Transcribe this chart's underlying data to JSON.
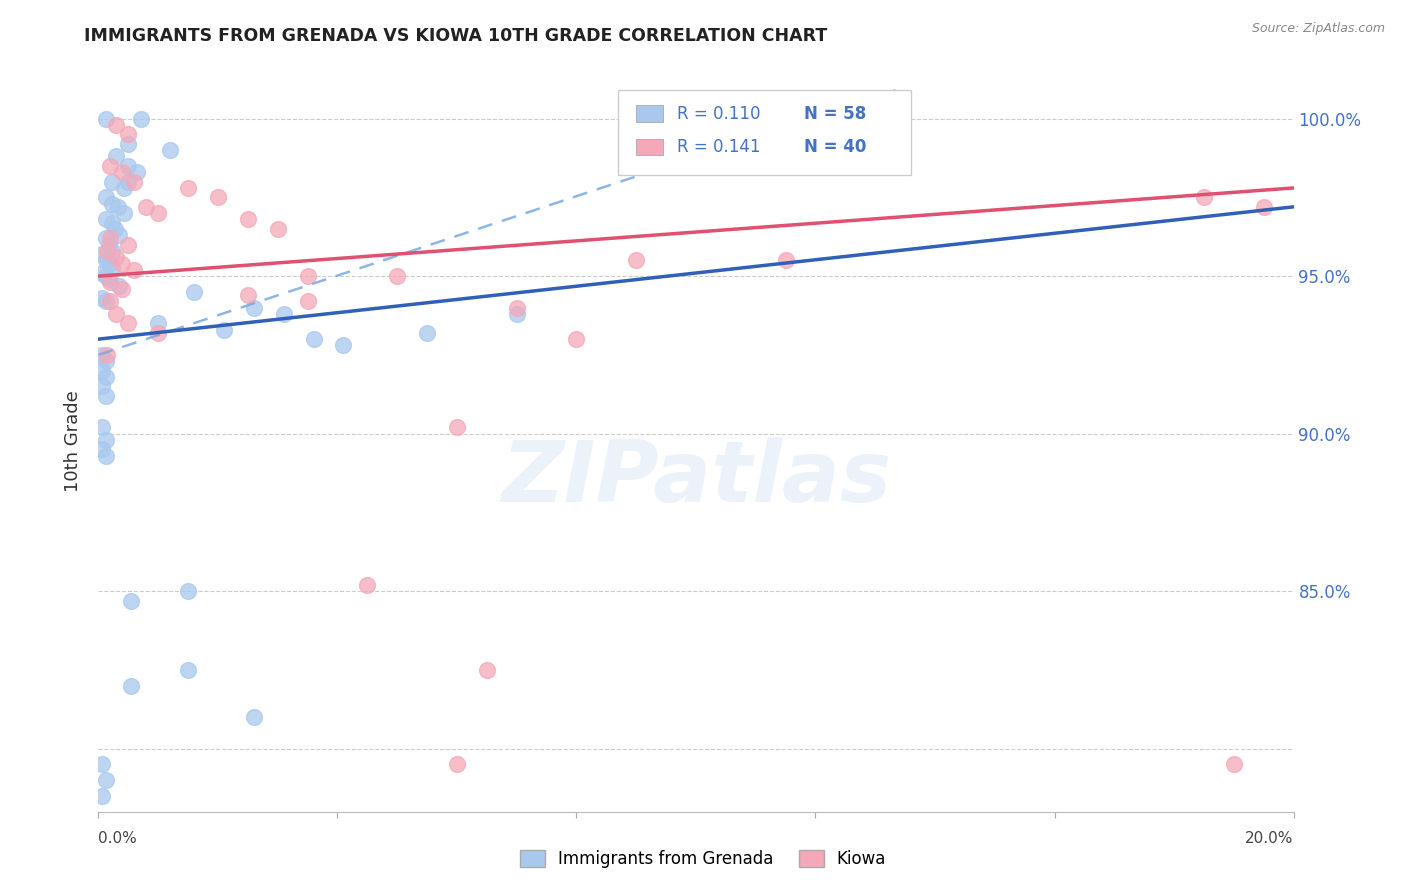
{
  "title": "IMMIGRANTS FROM GRENADA VS KIOWA 10TH GRADE CORRELATION CHART",
  "source": "Source: ZipAtlas.com",
  "ylabel": "10th Grade",
  "x_min": 0.0,
  "x_max": 20.0,
  "y_min": 78.0,
  "y_max": 101.5,
  "blue_color": "#A8C8EE",
  "pink_color": "#F4A8B8",
  "blue_line_color": "#3060B8",
  "pink_line_color": "#E05070",
  "dashed_line_color": "#7AAADE",
  "legend_r_color": "#4472C4",
  "blue_label": "Immigrants from Grenada",
  "pink_label": "Kiowa",
  "blue_r": "0.110",
  "blue_n": "58",
  "pink_r": "0.141",
  "pink_n": "40",
  "blue_line": [
    [
      0.0,
      93.0
    ],
    [
      20.0,
      97.2
    ]
  ],
  "pink_line": [
    [
      0.0,
      95.0
    ],
    [
      20.0,
      97.8
    ]
  ],
  "dashed_line": [
    [
      0.0,
      92.5
    ],
    [
      13.5,
      101.0
    ]
  ],
  "y_ticks": [
    80,
    85,
    90,
    95,
    100
  ],
  "y_tick_labels_right": [
    "",
    "85.0%",
    "90.0%",
    "95.0%",
    "100.0%"
  ],
  "grid_color": "#CCCCCC",
  "tick_label_color": "#4472C4",
  "blue_points": [
    [
      0.12,
      100.0
    ],
    [
      0.72,
      100.0
    ],
    [
      0.5,
      99.2
    ],
    [
      0.3,
      98.8
    ],
    [
      0.5,
      98.5
    ],
    [
      0.65,
      98.3
    ],
    [
      0.22,
      98.0
    ],
    [
      0.42,
      97.8
    ],
    [
      0.12,
      97.5
    ],
    [
      0.22,
      97.3
    ],
    [
      0.32,
      97.2
    ],
    [
      0.42,
      97.0
    ],
    [
      0.12,
      96.8
    ],
    [
      0.22,
      96.7
    ],
    [
      0.28,
      96.5
    ],
    [
      0.35,
      96.3
    ],
    [
      0.12,
      96.2
    ],
    [
      0.18,
      96.0
    ],
    [
      0.22,
      95.8
    ],
    [
      0.06,
      95.7
    ],
    [
      0.12,
      95.5
    ],
    [
      0.18,
      95.4
    ],
    [
      0.22,
      95.3
    ],
    [
      0.06,
      95.1
    ],
    [
      0.12,
      95.0
    ],
    [
      0.18,
      94.9
    ],
    [
      0.35,
      94.7
    ],
    [
      1.6,
      94.5
    ],
    [
      0.06,
      94.3
    ],
    [
      0.12,
      94.2
    ],
    [
      2.6,
      94.0
    ],
    [
      3.1,
      93.8
    ],
    [
      1.0,
      93.5
    ],
    [
      2.1,
      93.3
    ],
    [
      3.6,
      93.0
    ],
    [
      4.1,
      92.8
    ],
    [
      0.06,
      92.5
    ],
    [
      0.12,
      92.3
    ],
    [
      0.06,
      92.0
    ],
    [
      0.12,
      91.8
    ],
    [
      0.06,
      91.5
    ],
    [
      0.12,
      91.2
    ],
    [
      5.5,
      93.2
    ],
    [
      7.0,
      93.8
    ],
    [
      0.06,
      90.2
    ],
    [
      0.12,
      89.8
    ],
    [
      0.06,
      89.5
    ],
    [
      0.12,
      89.3
    ],
    [
      1.5,
      85.0
    ],
    [
      0.55,
      84.7
    ],
    [
      1.5,
      82.5
    ],
    [
      0.55,
      82.0
    ],
    [
      2.6,
      81.0
    ],
    [
      0.06,
      79.5
    ],
    [
      0.12,
      79.0
    ],
    [
      0.06,
      78.5
    ],
    [
      1.2,
      99.0
    ],
    [
      0.5,
      98.0
    ]
  ],
  "pink_points": [
    [
      0.3,
      99.8
    ],
    [
      0.5,
      99.5
    ],
    [
      0.2,
      98.5
    ],
    [
      0.4,
      98.3
    ],
    [
      0.6,
      98.0
    ],
    [
      1.5,
      97.8
    ],
    [
      2.0,
      97.5
    ],
    [
      0.8,
      97.2
    ],
    [
      1.0,
      97.0
    ],
    [
      2.5,
      96.8
    ],
    [
      3.0,
      96.5
    ],
    [
      0.2,
      96.2
    ],
    [
      0.5,
      96.0
    ],
    [
      0.15,
      95.8
    ],
    [
      0.3,
      95.6
    ],
    [
      0.4,
      95.4
    ],
    [
      0.6,
      95.2
    ],
    [
      3.5,
      95.0
    ],
    [
      5.0,
      95.0
    ],
    [
      0.2,
      94.8
    ],
    [
      0.4,
      94.6
    ],
    [
      2.5,
      94.4
    ],
    [
      3.5,
      94.2
    ],
    [
      7.0,
      94.0
    ],
    [
      9.0,
      95.5
    ],
    [
      12.0,
      100.0
    ],
    [
      11.5,
      95.5
    ],
    [
      18.5,
      97.5
    ],
    [
      8.0,
      93.0
    ],
    [
      6.0,
      90.2
    ],
    [
      4.5,
      85.2
    ],
    [
      6.5,
      82.5
    ],
    [
      19.5,
      97.2
    ],
    [
      0.2,
      94.2
    ],
    [
      0.3,
      93.8
    ],
    [
      0.5,
      93.5
    ],
    [
      1.0,
      93.2
    ],
    [
      0.15,
      92.5
    ],
    [
      6.0,
      79.5
    ],
    [
      19.0,
      79.5
    ]
  ]
}
